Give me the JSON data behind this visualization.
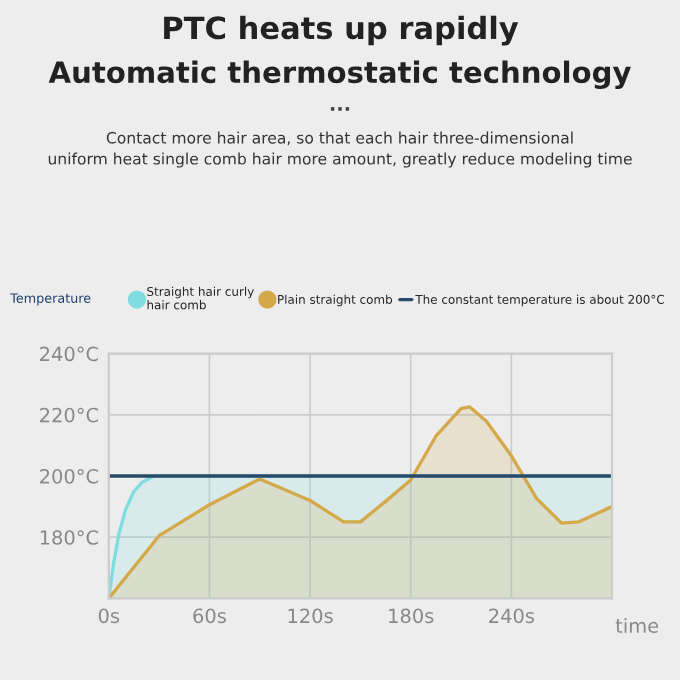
{
  "chart_data": {
    "type": "area",
    "title": "PTC heats up rapidly",
    "subtitle": "Automatic thermostatic technology",
    "annotations": [
      "...",
      "Contact more hair area, so that each hair three-dimensional\nuniform heat single comb hair more amount, greatly reduce modeling time"
    ],
    "xlabel": "time",
    "legend_title": "Temperature",
    "xlim": [
      0,
      300
    ],
    "xticks": [
      {
        "value": 0,
        "label": "0s"
      },
      {
        "value": 60,
        "label": "60s"
      },
      {
        "value": 120,
        "label": "120s"
      },
      {
        "value": 180,
        "label": "180s"
      },
      {
        "value": 240,
        "label": "240s"
      }
    ],
    "ylim": [
      160,
      240
    ],
    "yticks": [
      {
        "value": 180,
        "label": "180°C"
      },
      {
        "value": 200,
        "label": "200°C"
      },
      {
        "value": 220,
        "label": "220°C"
      },
      {
        "value": 240,
        "label": "240°C"
      }
    ],
    "grid": true,
    "legend": "top",
    "series": [
      {
        "name": "Straight hair curly\nhair comb",
        "color": "#7fdde0",
        "x": [
          0,
          3,
          6,
          10,
          15,
          20,
          27,
          300
        ],
        "values": [
          160,
          172,
          181,
          189,
          195,
          198,
          200,
          200
        ]
      },
      {
        "name": "Plain straight comb",
        "color": "#d4a94a",
        "x": [
          0,
          30,
          60,
          90,
          120,
          140,
          150,
          165,
          180,
          195,
          210,
          215,
          225,
          240,
          255,
          270,
          280,
          300
        ],
        "values": [
          160,
          180.5,
          190.6,
          199,
          192,
          185,
          185,
          191.7,
          198.7,
          213,
          222,
          222.6,
          218,
          206.6,
          192.7,
          184.6,
          185,
          190
        ]
      }
    ],
    "ref_lines": [
      {
        "axis": "y",
        "value": 200,
        "label": "The constant temperature is about 200°C",
        "color": "#2a4a6a"
      }
    ]
  }
}
